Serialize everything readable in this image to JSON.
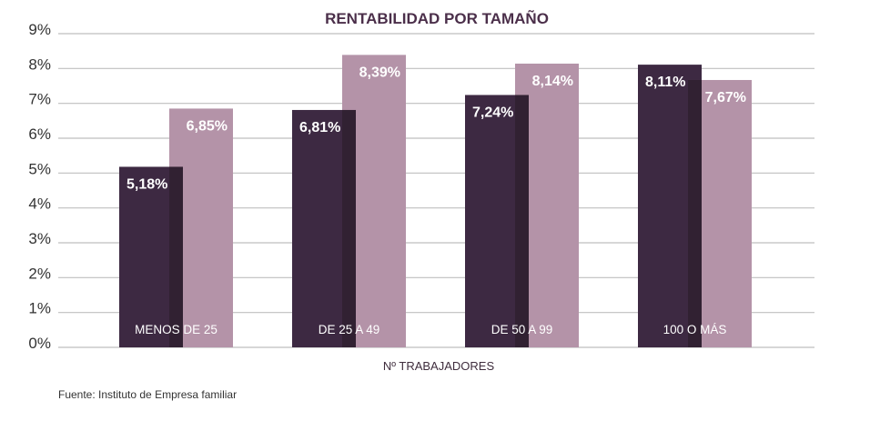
{
  "chart_data": {
    "type": "bar",
    "title": "RENTABILIDAD POR TAMAÑO",
    "xlabel": "Nº TRABAJADORES",
    "ylabel": "",
    "categories": [
      "MENOS DE 25",
      "DE 25 A 49",
      "DE 50 A 99",
      "100 O MÁS"
    ],
    "series": [
      {
        "color": "#3d2942",
        "values": [
          5.18,
          6.81,
          7.24,
          8.11
        ],
        "labels": [
          "5,18%",
          "6,81%",
          "7,24%",
          "8,11%"
        ]
      },
      {
        "color": "#b493a8",
        "values": [
          6.85,
          8.39,
          8.14,
          7.67
        ],
        "labels": [
          "6,85%",
          "8,39%",
          "8,14%",
          "7,67%"
        ]
      }
    ],
    "ylim": [
      0,
      9
    ],
    "yticks": [
      "0%",
      "1%",
      "2%",
      "3%",
      "4%",
      "5%",
      "6%",
      "7%",
      "8%",
      "9%"
    ],
    "grid": true,
    "legend": "none"
  },
  "source": "Fuente: Instituto de Empresa familiar",
  "colors": {
    "grid": "#bfbfbf",
    "overlap_shadow": "#2a1a2b",
    "title": "#4b2f4a"
  }
}
